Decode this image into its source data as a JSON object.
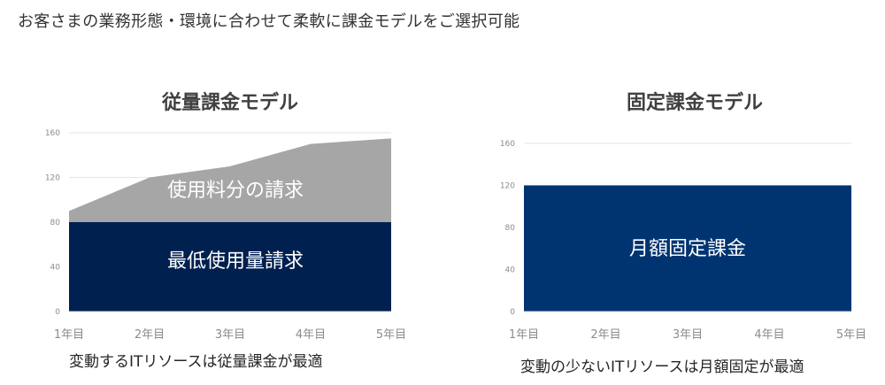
{
  "headline": "お客さまの業務形態・環境に合わせて柔軟に課金モデルをご選択可能",
  "colors": {
    "usage_area": "#a6a6a6",
    "minimum_area": "#002050",
    "fixed_area": "#003471",
    "grid": "#e6e6e6",
    "axis_text": "#8c8c8c"
  },
  "chart_data": [
    {
      "type": "area",
      "title": "従量課金モデル",
      "categories": [
        "1年目",
        "2年目",
        "3年目",
        "4年目",
        "5年目"
      ],
      "series": [
        {
          "name": "最低使用量請求",
          "values": [
            80,
            80,
            80,
            80,
            80
          ]
        },
        {
          "name": "使用料分の請求",
          "values": [
            10,
            40,
            50,
            70,
            75
          ]
        }
      ],
      "stacked": true,
      "ylim": [
        0,
        160
      ],
      "yticks": [
        0,
        40,
        80,
        120,
        160
      ],
      "grid": true,
      "caption": "変動するITリソースは従量課金が最適"
    },
    {
      "type": "area",
      "title": "固定課金モデル",
      "categories": [
        "1年目",
        "2年目",
        "3年目",
        "4年目",
        "5年目"
      ],
      "series": [
        {
          "name": "月額固定課金",
          "values": [
            120,
            120,
            120,
            120,
            120
          ]
        }
      ],
      "stacked": false,
      "ylim": [
        0,
        160
      ],
      "yticks": [
        0,
        40,
        80,
        120,
        160
      ],
      "grid": true,
      "caption": "変動の少ないITリソースは月額固定が最適"
    }
  ]
}
